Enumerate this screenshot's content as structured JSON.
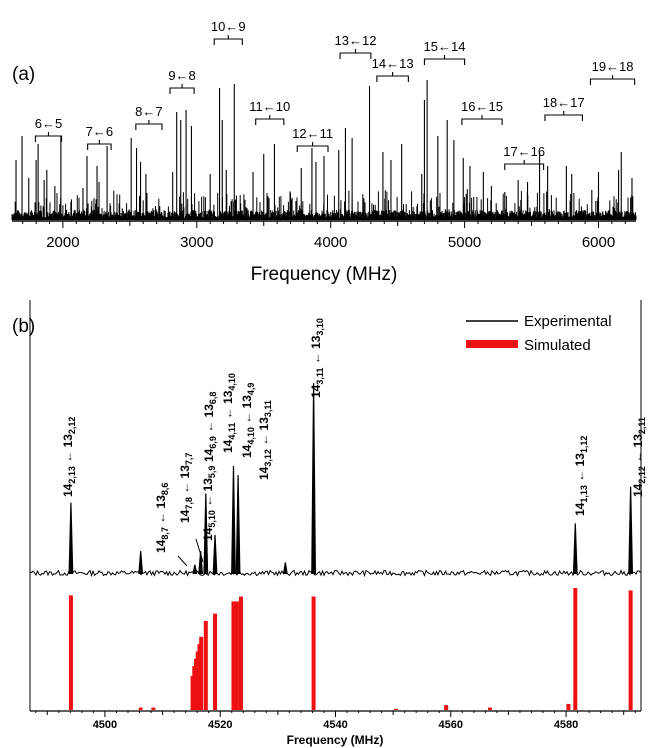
{
  "chart_data": [
    {
      "panel": "(a)",
      "type": "line",
      "xlabel": "Frequency (MHz)",
      "xlim": [
        1620,
        6280
      ],
      "xticks": [
        2000,
        3000,
        4000,
        5000,
        6000
      ],
      "ylabel": "",
      "annotations": [
        {
          "text": "6←5",
          "x0": 1795,
          "x1": 1990
        },
        {
          "text": "7←6",
          "x0": 2185,
          "x1": 2360
        },
        {
          "text": "8←7",
          "x0": 2545,
          "x1": 2740
        },
        {
          "text": "9←8",
          "x0": 2800,
          "x1": 2980
        },
        {
          "text": "10←9",
          "x0": 3130,
          "x1": 3340
        },
        {
          "text": "11←10",
          "x0": 3440,
          "x1": 3650
        },
        {
          "text": "12←11",
          "x0": 3750,
          "x1": 3980
        },
        {
          "text": "13←12",
          "x0": 4070,
          "x1": 4300
        },
        {
          "text": "14←13",
          "x0": 4345,
          "x1": 4580
        },
        {
          "text": "15←14",
          "x0": 4700,
          "x1": 5000
        },
        {
          "text": "16←15",
          "x0": 4980,
          "x1": 5280
        },
        {
          "text": "17←16",
          "x0": 5300,
          "x1": 5590
        },
        {
          "text": "18←17",
          "x0": 5600,
          "x1": 5880
        },
        {
          "text": "19←18",
          "x0": 5940,
          "x1": 6270
        }
      ],
      "lines": [
        {
          "x": 1650,
          "y": 0.3
        },
        {
          "x": 1695,
          "y": 0.42
        },
        {
          "x": 1745,
          "y": 0.21
        },
        {
          "x": 1800,
          "y": 0.3
        },
        {
          "x": 1815,
          "y": 0.38
        },
        {
          "x": 1860,
          "y": 0.2
        },
        {
          "x": 1880,
          "y": 0.25
        },
        {
          "x": 1940,
          "y": 0.17
        },
        {
          "x": 1985,
          "y": 0.42
        },
        {
          "x": 2150,
          "y": 0.16
        },
        {
          "x": 2180,
          "y": 0.32
        },
        {
          "x": 2255,
          "y": 0.27
        },
        {
          "x": 2270,
          "y": 0.19
        },
        {
          "x": 2330,
          "y": 0.37
        },
        {
          "x": 2510,
          "y": 0.41
        },
        {
          "x": 2550,
          "y": 0.36
        },
        {
          "x": 2580,
          "y": 0.29
        },
        {
          "x": 2620,
          "y": 0.23
        },
        {
          "x": 2820,
          "y": 0.24
        },
        {
          "x": 2850,
          "y": 0.54
        },
        {
          "x": 2880,
          "y": 0.5
        },
        {
          "x": 2920,
          "y": 0.55
        },
        {
          "x": 2960,
          "y": 0.47
        },
        {
          "x": 3100,
          "y": 0.23
        },
        {
          "x": 3170,
          "y": 0.66
        },
        {
          "x": 3190,
          "y": 0.5
        },
        {
          "x": 3220,
          "y": 0.25
        },
        {
          "x": 3280,
          "y": 0.68
        },
        {
          "x": 3420,
          "y": 0.24
        },
        {
          "x": 3500,
          "y": 0.33
        },
        {
          "x": 3580,
          "y": 0.38
        },
        {
          "x": 3780,
          "y": 0.26
        },
        {
          "x": 3860,
          "y": 0.36
        },
        {
          "x": 3890,
          "y": 0.29
        },
        {
          "x": 3950,
          "y": 0.32
        },
        {
          "x": 4060,
          "y": 0.35
        },
        {
          "x": 4110,
          "y": 0.46
        },
        {
          "x": 4160,
          "y": 0.41
        },
        {
          "x": 4290,
          "y": 0.67
        },
        {
          "x": 4390,
          "y": 0.34
        },
        {
          "x": 4450,
          "y": 0.3
        },
        {
          "x": 4530,
          "y": 0.38
        },
        {
          "x": 4680,
          "y": 0.23
        },
        {
          "x": 4700,
          "y": 0.6
        },
        {
          "x": 4720,
          "y": 0.7
        },
        {
          "x": 4800,
          "y": 0.42
        },
        {
          "x": 4870,
          "y": 0.5
        },
        {
          "x": 4920,
          "y": 0.4
        },
        {
          "x": 4990,
          "y": 0.31
        },
        {
          "x": 5040,
          "y": 0.27
        },
        {
          "x": 5140,
          "y": 0.24
        },
        {
          "x": 5200,
          "y": 0.17
        },
        {
          "x": 5300,
          "y": 0.14
        },
        {
          "x": 5400,
          "y": 0.2
        },
        {
          "x": 5470,
          "y": 0.19
        },
        {
          "x": 5560,
          "y": 0.34
        },
        {
          "x": 5620,
          "y": 0.27
        },
        {
          "x": 5760,
          "y": 0.27
        },
        {
          "x": 5800,
          "y": 0.23
        },
        {
          "x": 5950,
          "y": 0.15
        },
        {
          "x": 6000,
          "y": 0.24
        },
        {
          "x": 6150,
          "y": 0.25
        },
        {
          "x": 6170,
          "y": 0.34
        },
        {
          "x": 6250,
          "y": 0.21
        }
      ]
    },
    {
      "panel": "(b)",
      "type": "line",
      "xlabel": "Frequency (MHz)",
      "xlim": [
        4487,
        4593
      ],
      "xticks": [
        4500,
        4520,
        4540,
        4560,
        4580
      ],
      "series": [
        {
          "name": "Experimental",
          "color": "#000000"
        },
        {
          "name": "Simulated",
          "color": "#ee1111"
        }
      ],
      "experimental_peaks": [
        {
          "x": 4494.1,
          "y": 0.31
        },
        {
          "x": 4506.2,
          "y": 0.1
        },
        {
          "x": 4515.6,
          "y": 0.04
        },
        {
          "x": 4516.6,
          "y": 0.1
        },
        {
          "x": 4517.5,
          "y": 0.35
        },
        {
          "x": 4519.1,
          "y": 0.17
        },
        {
          "x": 4522.3,
          "y": 0.47
        },
        {
          "x": 4523.1,
          "y": 0.43
        },
        {
          "x": 4531.3,
          "y": 0.05
        },
        {
          "x": 4536.2,
          "y": 0.83
        },
        {
          "x": 4581.6,
          "y": 0.22
        },
        {
          "x": 4591.2,
          "y": 0.38
        }
      ],
      "simulated_lines": [
        {
          "x": 4494.1,
          "y": 0.94
        },
        {
          "x": 4506.2,
          "y": 0.02
        },
        {
          "x": 4508.4,
          "y": 0.02
        },
        {
          "x": 4515.2,
          "y": 0.28
        },
        {
          "x": 4515.5,
          "y": 0.36
        },
        {
          "x": 4515.8,
          "y": 0.42
        },
        {
          "x": 4516.1,
          "y": 0.48
        },
        {
          "x": 4516.4,
          "y": 0.54
        },
        {
          "x": 4516.7,
          "y": 0.6
        },
        {
          "x": 4517.5,
          "y": 0.73
        },
        {
          "x": 4519.1,
          "y": 0.79
        },
        {
          "x": 4522.3,
          "y": 0.89
        },
        {
          "x": 4522.9,
          "y": 0.89
        },
        {
          "x": 4523.6,
          "y": 0.93
        },
        {
          "x": 4536.2,
          "y": 0.93
        },
        {
          "x": 4550.5,
          "y": 0.01
        },
        {
          "x": 4559.2,
          "y": 0.04
        },
        {
          "x": 4566.8,
          "y": 0.02
        },
        {
          "x": 4580.4,
          "y": 0.05
        },
        {
          "x": 4581.6,
          "y": 1.0
        },
        {
          "x": 4591.2,
          "y": 0.98
        }
      ],
      "labels": [
        {
          "main": "14",
          "sub": "2,13",
          "arrow": "←",
          "main2": "13",
          "sub2": "2,12"
        },
        {
          "main": "14",
          "sub": "8,7",
          "arrow": "←",
          "main2": "13",
          "sub2": "8,6"
        },
        {
          "main": "14",
          "sub": "7,8",
          "arrow": "←",
          "main2": "13",
          "sub2": "7,7"
        },
        {
          "main": "14",
          "sub": "5,10",
          "arrow": "←",
          "main2": "13",
          "sub2": "5,9"
        },
        {
          "main": "14",
          "sub": "6,9",
          "arrow": "←",
          "main2": "13",
          "sub2": "6,8"
        },
        {
          "main": "14",
          "sub": "4,11",
          "arrow": "←",
          "main2": "13",
          "sub2": "4,10"
        },
        {
          "main": "14",
          "sub": "4,10",
          "arrow": "←",
          "main2": "13",
          "sub2": "4,9"
        },
        {
          "main": "14",
          "sub": "3,12",
          "arrow": "←",
          "main2": "13",
          "sub2": "3,11"
        },
        {
          "main": "14",
          "sub": "3,11",
          "arrow": "←",
          "main2": "13",
          "sub2": "3,10"
        },
        {
          "main": "14",
          "sub": "1,13",
          "arrow": "←",
          "main2": "13",
          "sub2": "1,12"
        },
        {
          "main": "14",
          "sub": "2,12",
          "arrow": "←",
          "main2": "13",
          "sub2": "2,11"
        }
      ]
    }
  ]
}
